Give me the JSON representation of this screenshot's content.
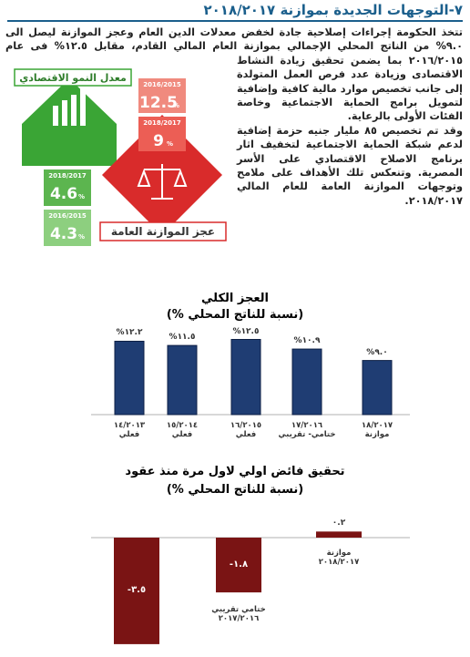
{
  "heading": "٧-التوجهات الجديدة بموازنة ٢٠١٨/٢٠١٧",
  "paragraphs": [
    "تتخذ الحكومة إجراءات إصلاحية جادة لخفض معدلات الدين العام وعجز الموازنة ليصل الى ٩.٠% من الناتج المحلي الإجمالي بموازنة العام المالي القادم، مقابل ١٢.٥% فى عام ٢٠١٦/٢٠١٥ بما يضمن تحقيق زيادة النشاط الاقتصادى وزيادة عدد فرص العمل المتولدة إلى جانب تخصيص موارد مالية كافية وإضافية لتمويل برامج الحماية الاجتماعية وخاصة الفئات الأولى بالرعاية.",
    "وقد تم تخصيص ٨٥ مليار جنيه حزمة إضافية لدعم شبكة الحماية الاجتماعية لتخفيف اثار برنامج الاصلاح الاقتصادي على الأسر المصرية. وتنعكس تلك الأهداف على ملامح وتوجهات الموازنة العامة للعام المالي ٢٠١٨/٢٠١٧."
  ],
  "infographic": {
    "growth": {
      "title": "معدل النمو الاقتصادي",
      "items": [
        {
          "period": "2018/2017",
          "value": "4.6",
          "unit": "%"
        },
        {
          "period": "2016/2015",
          "value": "4.3",
          "unit": "%"
        }
      ]
    },
    "deficit": {
      "title": "عجز الموازنة العامة",
      "items": [
        {
          "period": "2016/2015",
          "value": "12.5",
          "unit": "%"
        },
        {
          "period": "2018/2017",
          "value": "9",
          "unit": "%"
        }
      ]
    }
  },
  "chart_data": [
    {
      "type": "bar",
      "title": "العجز الكلي",
      "subtitle": "(نسبة للناتج المحلي %)",
      "color": "#1f3d73",
      "categories": [
        "١٤/٢٠١٣\nفعلي",
        "١٥/٢٠١٤\nفعلي",
        "١٦/٢٠١٥\nفعلي",
        "١٧/٢٠١٦\nختامي- تقريبي",
        "١٨/٢٠١٧\nموازنة"
      ],
      "values": [
        12.2,
        11.5,
        12.5,
        10.9,
        9.0
      ],
      "value_labels": [
        "١٢.٢%",
        "١١.٥%",
        "١٢.٥%",
        "١٠.٩%",
        "٩.٠%"
      ]
    },
    {
      "type": "bar",
      "title": "تحقيق فائض اولي لاول مرة منذ عقود",
      "subtitle": "(نسبة للناتج المحلي %)",
      "color": "#7a1414",
      "categories": [
        null,
        "ختامي تقريبي\n٢٠١٧/٢٠١٦",
        "موازنة\n٢٠١٨/٢٠١٧"
      ],
      "values": [
        -3.5,
        -1.8,
        0.2
      ],
      "value_labels": [
        "-٣.٥",
        "-١.٨",
        "٠.٢"
      ]
    }
  ]
}
